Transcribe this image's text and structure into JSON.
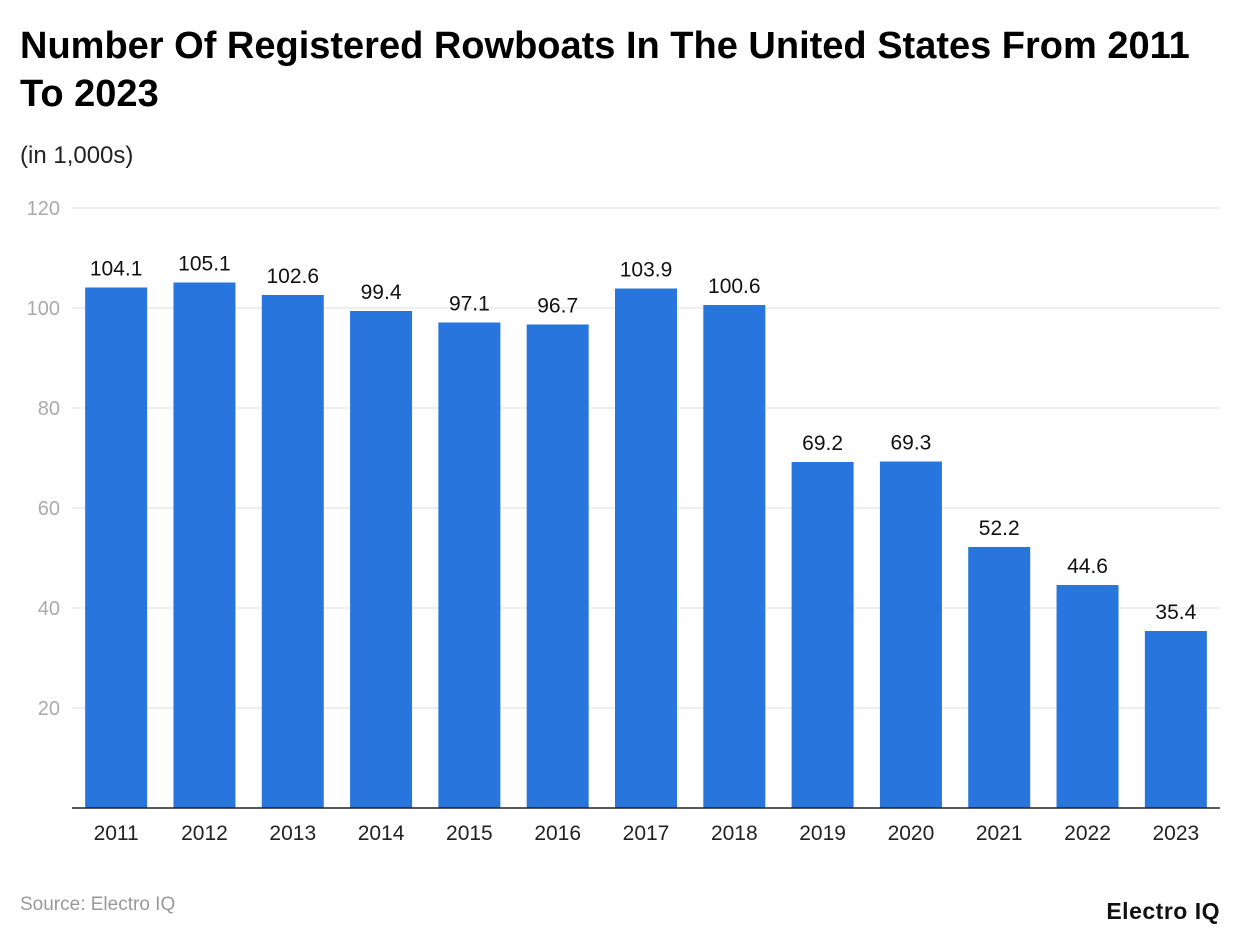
{
  "chart_data": {
    "type": "bar",
    "title": "Number Of Registered Rowboats In The United States From 2011 To 2023",
    "subtitle": "(in 1,000s)",
    "categories": [
      "2011",
      "2012",
      "2013",
      "2014",
      "2015",
      "2016",
      "2017",
      "2018",
      "2019",
      "2020",
      "2021",
      "2022",
      "2023"
    ],
    "values": [
      104.1,
      105.1,
      102.6,
      99.4,
      97.1,
      96.7,
      103.9,
      100.6,
      69.2,
      69.3,
      52.2,
      44.6,
      35.4
    ],
    "ylim": [
      0,
      120
    ],
    "yticks": [
      20,
      40,
      60,
      80,
      100,
      120
    ],
    "grid": true,
    "bar_color": "#2876DD",
    "xlabel": "",
    "ylabel": ""
  },
  "source": "Source: Electro IQ",
  "logo": "Electro IQ"
}
